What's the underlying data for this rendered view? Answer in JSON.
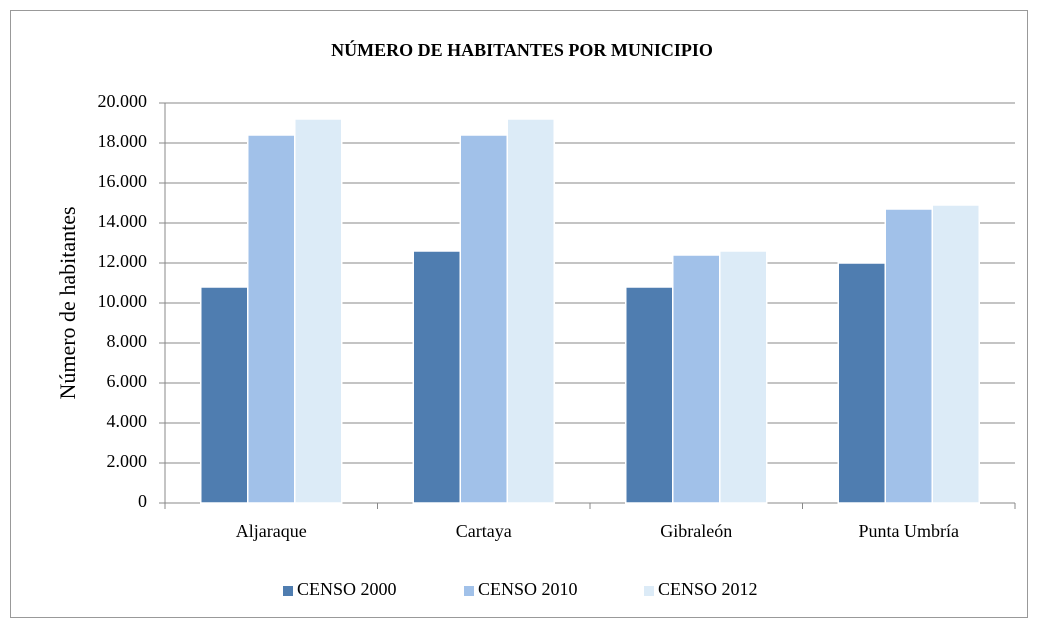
{
  "chart_data": {
    "type": "bar",
    "title": "NÚMERO DE HABITANTES POR MUNICIPIO",
    "y_label": "Número de habitantes",
    "categories": [
      "Aljaraque",
      "Cartaya",
      "Gibraleón",
      "Punta Umbría"
    ],
    "series": [
      {
        "name": "CENSO 2000",
        "color": "#4f7db0",
        "values": [
          10800,
          12600,
          10800,
          12000
        ]
      },
      {
        "name": "CENSO 2010",
        "color": "#a1c1e9",
        "values": [
          18400,
          18400,
          12400,
          14700
        ]
      },
      {
        "name": "CENSO 2012",
        "color": "#dcebf7",
        "values": [
          19200,
          19200,
          12600,
          14900
        ]
      }
    ],
    "ylim": [
      0,
      20000
    ],
    "yticks": [
      0,
      {
        "value": 2000,
        "label": "2.000"
      },
      {
        "value": 4000,
        "label": "4.000"
      },
      {
        "value": 6000,
        "label": "6.000"
      },
      {
        "value": 8000,
        "label": "8.000"
      },
      {
        "value": 10000,
        "label": "10.000"
      },
      {
        "value": 12000,
        "label": "12.000"
      },
      {
        "value": 14000,
        "label": "14.000"
      },
      {
        "value": 16000,
        "label": "16.000"
      },
      {
        "value": 18000,
        "label": "18.000"
      },
      {
        "value": 20000,
        "label": "20.000"
      }
    ],
    "grid": true,
    "legend": "bottom"
  }
}
